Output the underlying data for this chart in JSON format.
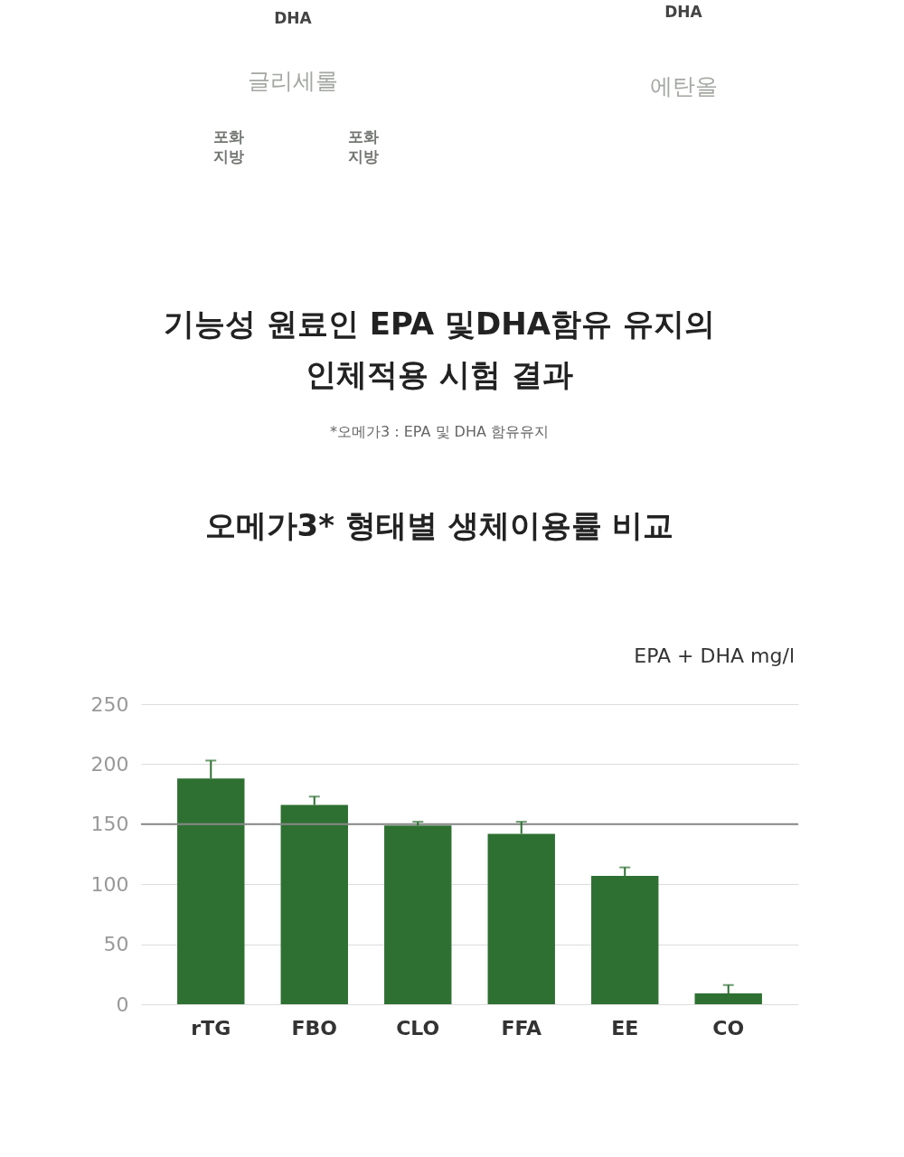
{
  "chart_data": {
    "type": "bar",
    "title": "오메가3* 형태별 생체이용률 비교",
    "ylabel": "EPA + DHA mg/l",
    "categories": [
      "rTG",
      "FBO",
      "CLO",
      "FFA",
      "EE",
      "CO"
    ],
    "values": [
      188,
      166,
      149,
      142,
      107,
      9
    ],
    "errors": [
      [
        188,
        203
      ],
      [
        166,
        173
      ],
      [
        149,
        152
      ],
      [
        142,
        152
      ],
      [
        107,
        114
      ],
      [
        9,
        16
      ]
    ],
    "color": "#2e7032",
    "ylim": [
      0,
      250
    ],
    "yticks": [
      0,
      50,
      100,
      150,
      200,
      250
    ],
    "grid": "y",
    "ref_lines": [
      {
        "axis": "y",
        "value": 150,
        "color": "#888888"
      }
    ],
    "annotations": [
      "기능성 원료인 EPA 및DHA함유 유지의",
      "인체적용 시험 결과",
      "*오메가3 : EPA 및 DHA 함유유지",
      "DHA",
      "글리세롤",
      "포화",
      "지방",
      "포화",
      "지방",
      "DHA",
      "에탄올"
    ]
  }
}
